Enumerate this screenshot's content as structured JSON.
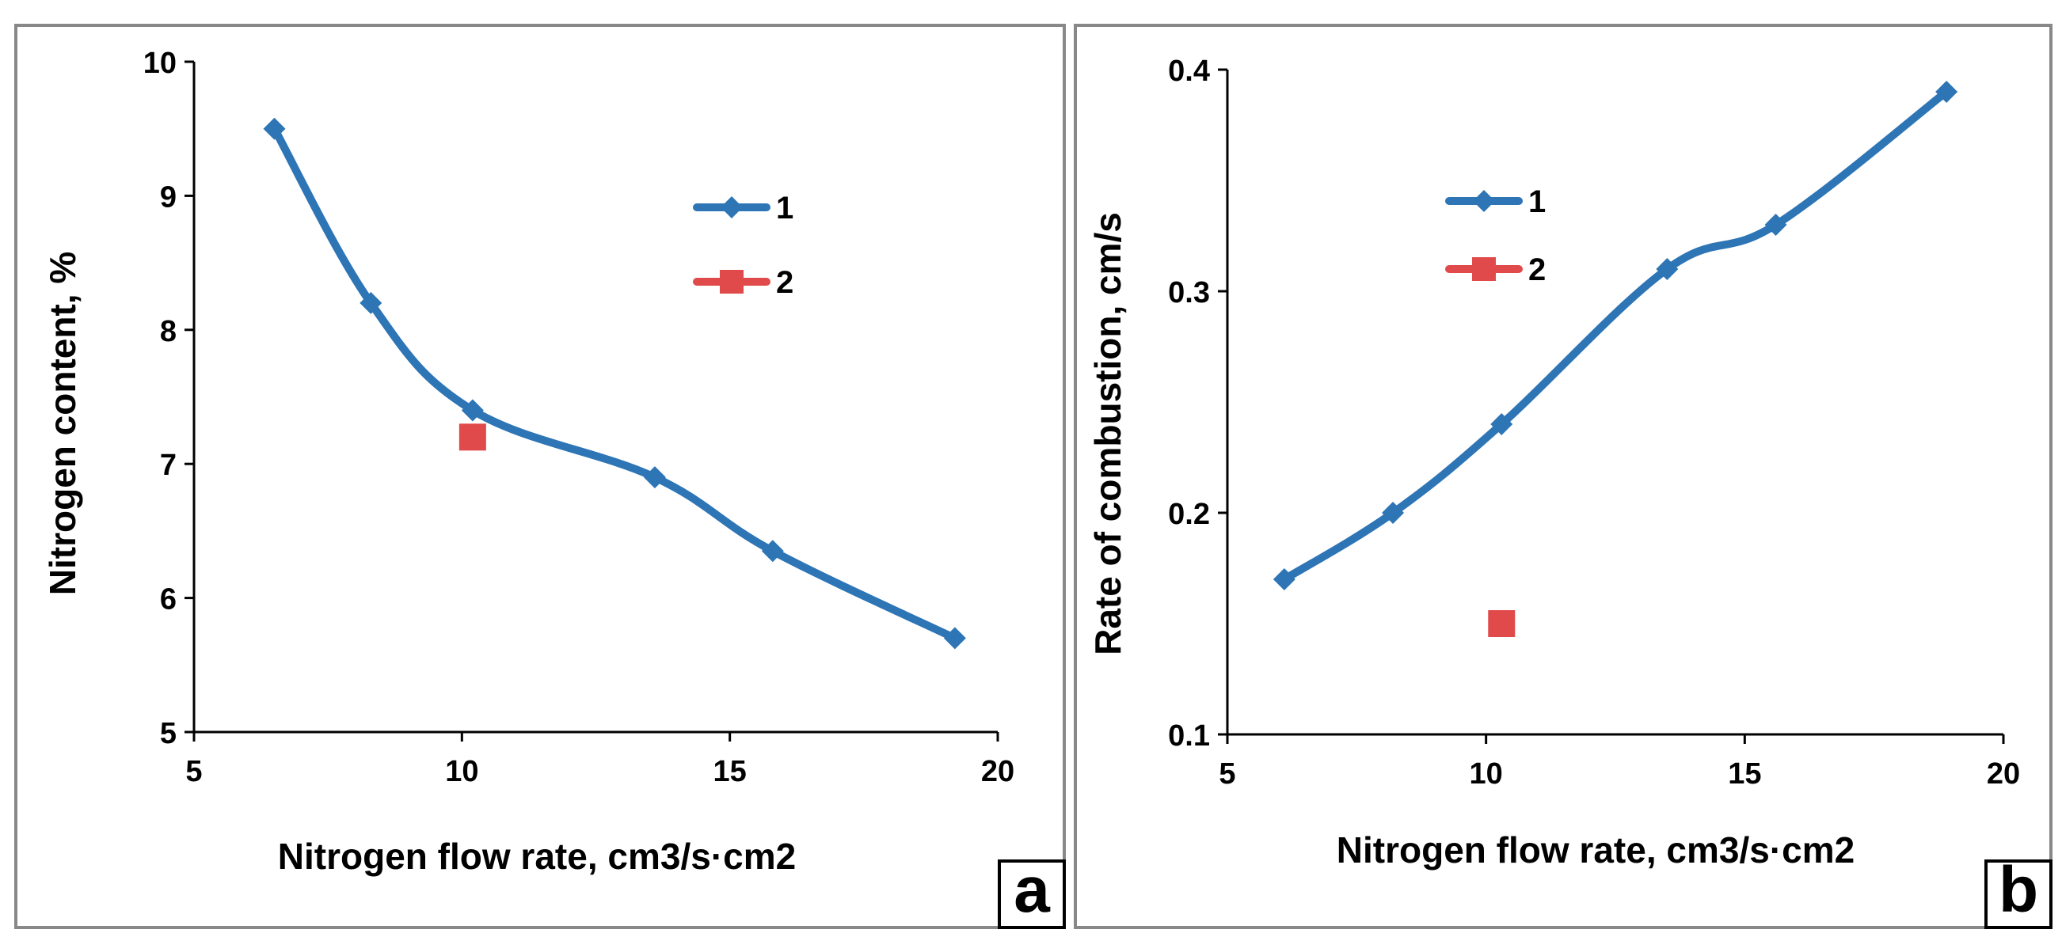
{
  "colors": {
    "series1": "#2E75B6",
    "series2": "#E04A4A",
    "frame": "#888888",
    "axis": "#000000"
  },
  "chart_data": [
    {
      "type": "line",
      "panel_label": "a",
      "title": "",
      "xlabel": "Nitrogen flow rate, cm3/s·cm2",
      "ylabel": "Nitrogen content, %",
      "xlim": [
        5,
        20
      ],
      "ylim": [
        5,
        10
      ],
      "xticks": [
        5,
        10,
        15,
        20
      ],
      "yticks": [
        5,
        6,
        7,
        8,
        9,
        10
      ],
      "xtick_labels": [
        "5",
        "10",
        "15",
        "20"
      ],
      "ytick_labels": [
        "5",
        "6",
        "7",
        "8",
        "9",
        "10"
      ],
      "legend_position": "top-right",
      "series": [
        {
          "name": "1",
          "marker": "diamond",
          "line": true,
          "x": [
            6.5,
            8.3,
            10.2,
            13.6,
            15.8,
            19.2
          ],
          "y": [
            9.5,
            8.2,
            7.4,
            6.9,
            6.35,
            5.7
          ]
        },
        {
          "name": "2",
          "marker": "square",
          "line": false,
          "x": [
            10.2
          ],
          "y": [
            7.2
          ]
        }
      ]
    },
    {
      "type": "line",
      "panel_label": "b",
      "title": "",
      "xlabel": "Nitrogen flow rate, cm3/s·cm2",
      "ylabel": "Rate of combustion, cm/s",
      "xlim": [
        5,
        20
      ],
      "ylim": [
        0.1,
        0.4
      ],
      "xticks": [
        5,
        10,
        15,
        20
      ],
      "yticks": [
        0.1,
        0.2,
        0.3,
        0.4
      ],
      "xtick_labels": [
        "5",
        "10",
        "15",
        "20"
      ],
      "ytick_labels": [
        "0.1",
        "0.2",
        "0.3",
        "0.4"
      ],
      "legend_position": "top-left",
      "series": [
        {
          "name": "1",
          "marker": "diamond",
          "line": true,
          "x": [
            6.1,
            8.2,
            10.3,
            13.5,
            15.6,
            18.9
          ],
          "y": [
            0.17,
            0.2,
            0.24,
            0.31,
            0.33,
            0.39
          ]
        },
        {
          "name": "2",
          "marker": "square",
          "line": false,
          "x": [
            10.3
          ],
          "y": [
            0.15
          ]
        }
      ]
    }
  ]
}
